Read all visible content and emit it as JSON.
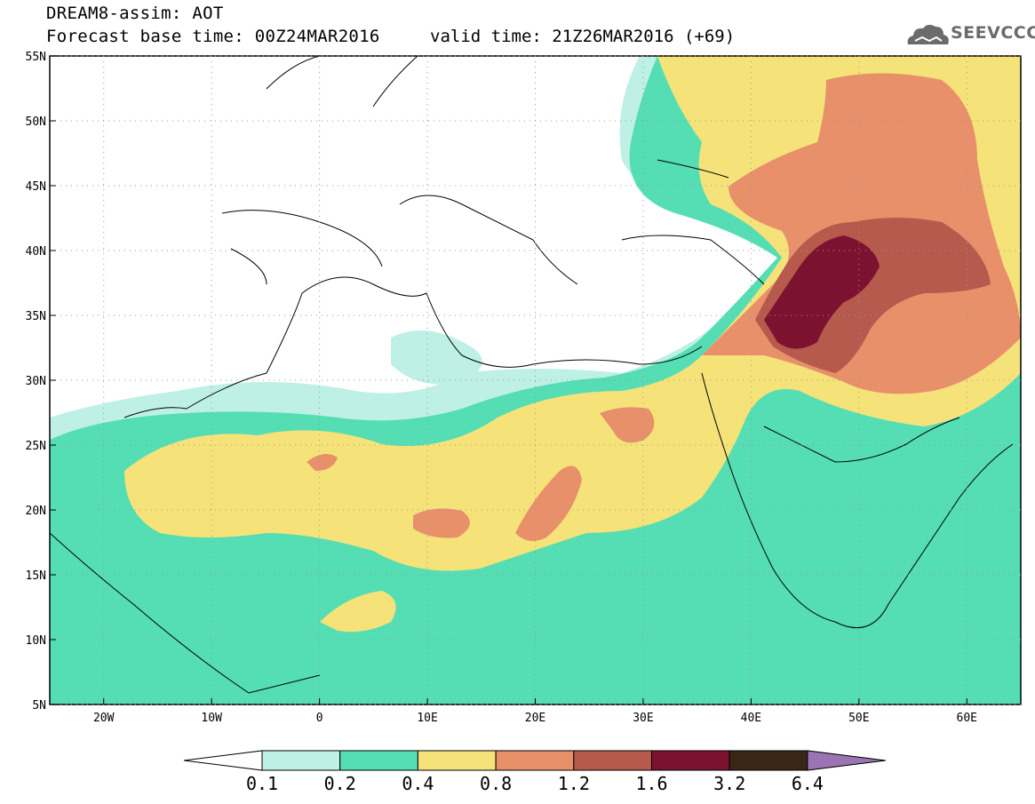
{
  "title": {
    "line1": "DREAM8-assim: AOT",
    "line2": "Forecast base time: 00Z24MAR2016",
    "valid": "valid time: 21Z26MAR2016 (+69)"
  },
  "logo": {
    "text": "SEEVCCC"
  },
  "axes": {
    "lon_range": [
      -25,
      65
    ],
    "lat_range": [
      5,
      55
    ],
    "x_ticks": [
      "20W",
      "10W",
      "0",
      "10E",
      "20E",
      "30E",
      "40E",
      "50E",
      "60E"
    ],
    "y_ticks": [
      "55N",
      "50N",
      "45N",
      "40N",
      "35N",
      "30N",
      "25N",
      "20N",
      "15N",
      "10N",
      "5N"
    ]
  },
  "colorbar": {
    "labels": [
      "0.1",
      "0.2",
      "0.4",
      "0.8",
      "1.2",
      "1.6",
      "3.2",
      "6.4"
    ],
    "colors": [
      "#bff0e6",
      "#55ddb4",
      "#f5e37a",
      "#e8906a",
      "#b55a4c",
      "#7d1230",
      "#3a2616",
      "#9a74b4"
    ],
    "under_color": "#ffffff"
  },
  "levels": {
    "l1": "#bff0e6",
    "l2": "#55ddb4",
    "l3": "#f5e37a",
    "l4": "#e8906a",
    "l5": "#b55a4c",
    "l6": "#7d1230"
  }
}
